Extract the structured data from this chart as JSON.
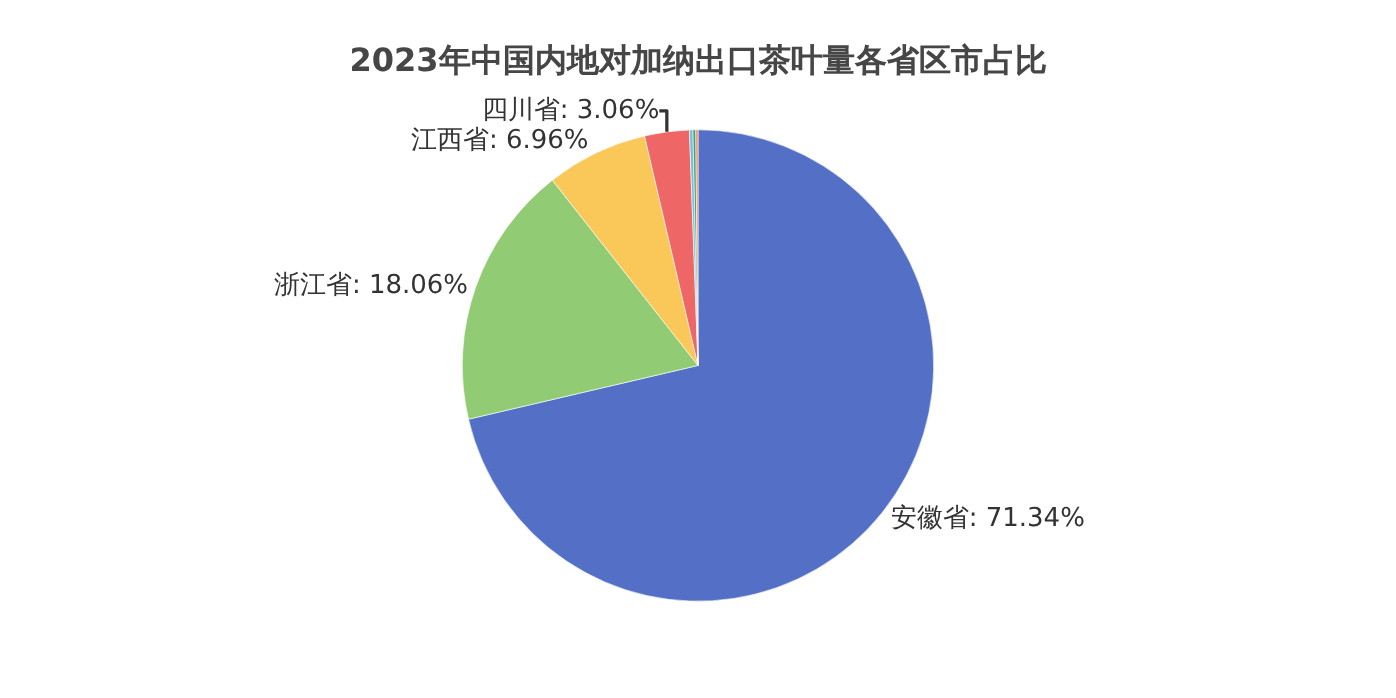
{
  "chart_data": {
    "type": "pie",
    "title": "2023年中国内地对加纳出口茶叶量各省区市占比",
    "categories": [
      "安徽省",
      "浙江省",
      "江西省",
      "四川省",
      null,
      null,
      null
    ],
    "values": [
      71.34,
      18.06,
      6.96,
      3.06,
      0.24,
      0.19,
      0.15
    ],
    "value_labels": [
      "71.34%",
      "18.06%",
      "6.96%",
      "3.06%",
      null,
      null,
      null
    ],
    "colors": [
      "#5470c6",
      "#91cc75",
      "#fac858",
      "#ee6666",
      "#73c0de",
      "#3ba272",
      "#fc8452"
    ],
    "legend": false
  }
}
